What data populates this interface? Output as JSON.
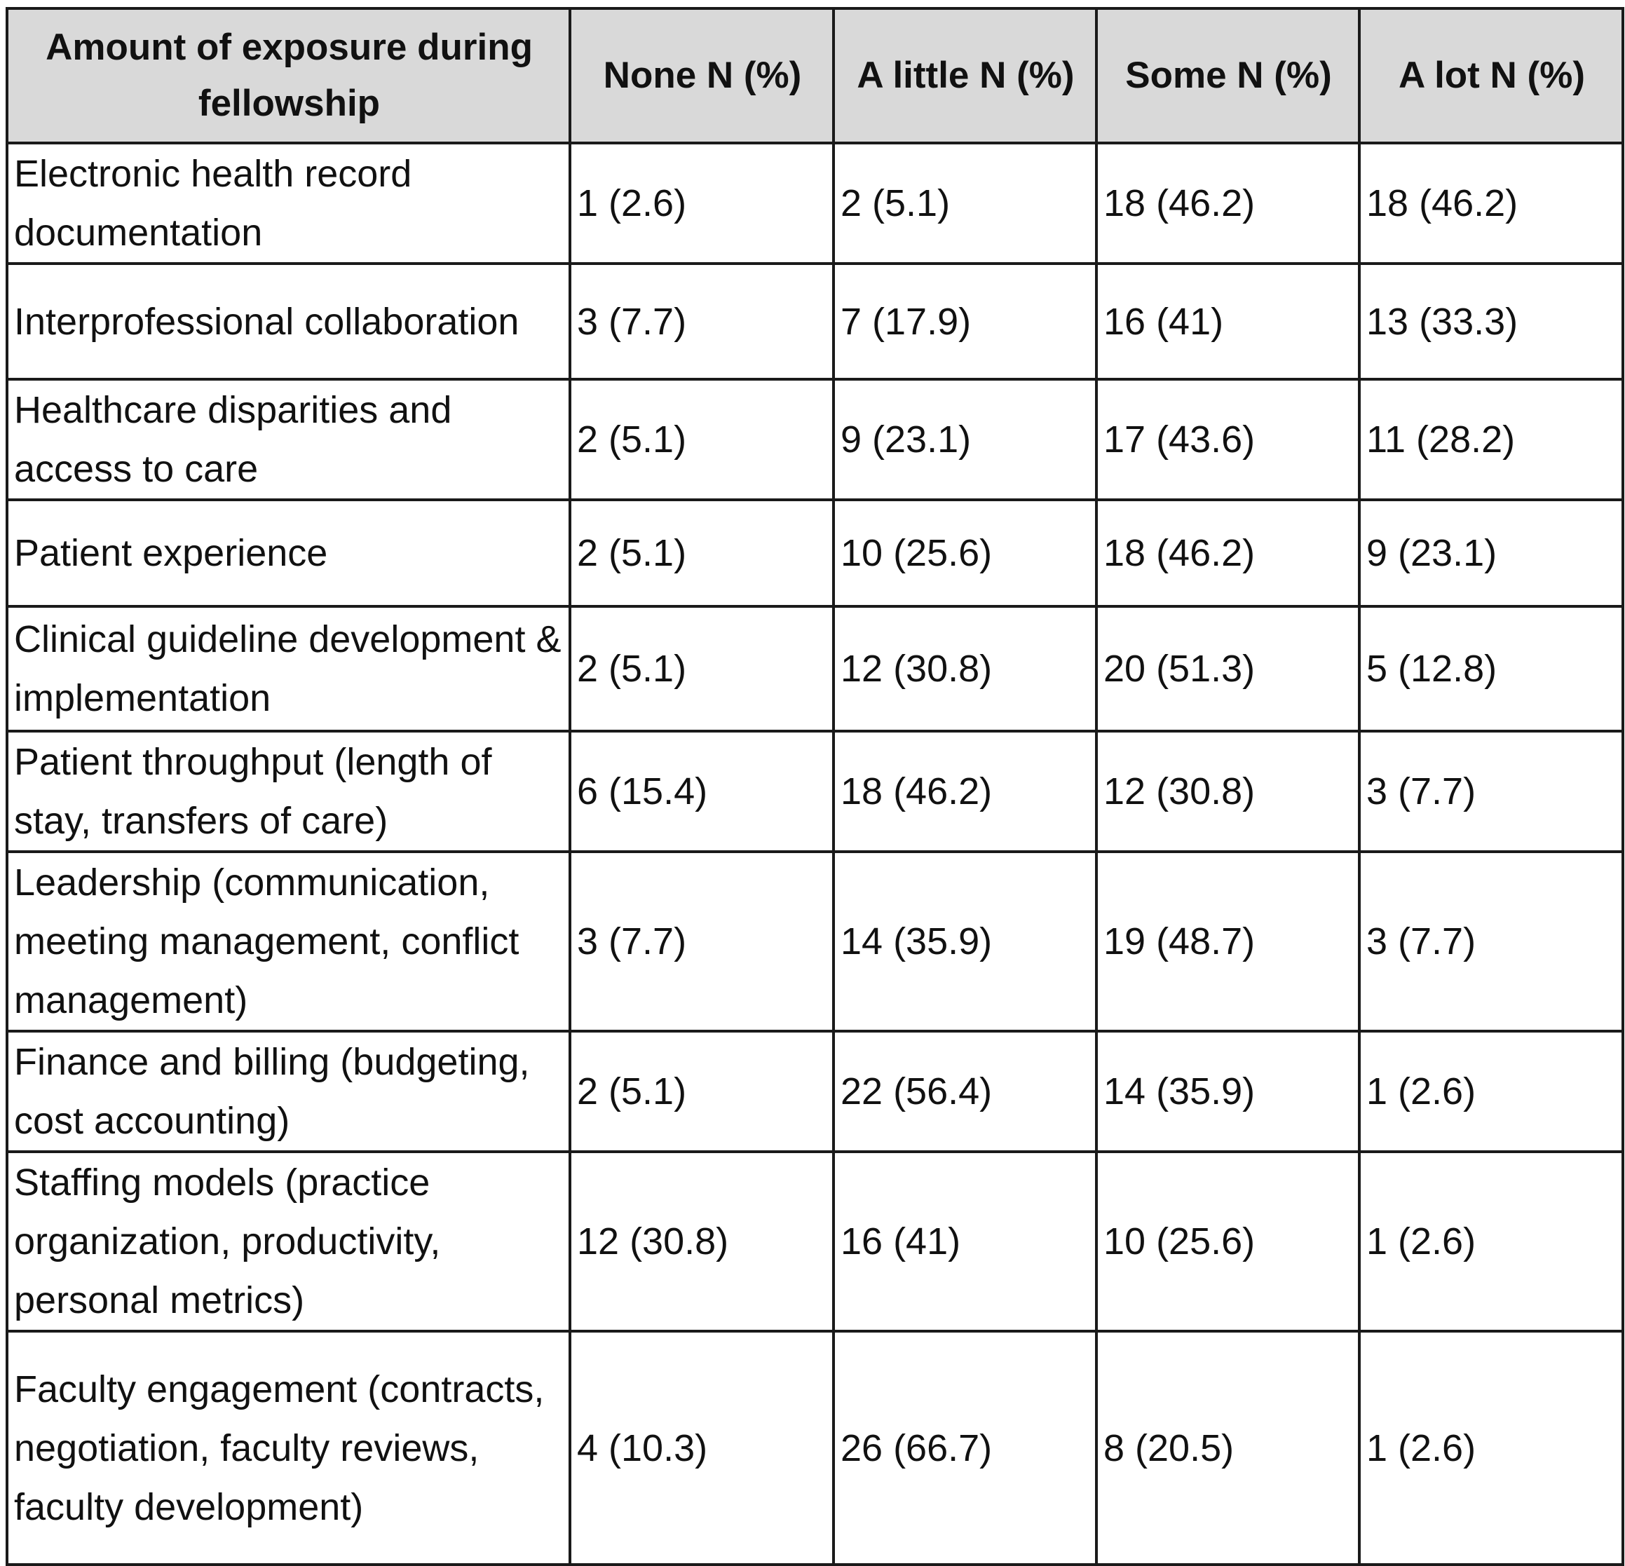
{
  "table": {
    "headers": [
      "Amount of exposure during fellowship",
      "None N (%)",
      "A little N (%)",
      "Some N (%)",
      "A lot N (%)"
    ],
    "rows": [
      {
        "topic": "Electronic health record documentation",
        "none": "1 (2.6)",
        "a_little": "2 (5.1)",
        "some": "18 (46.2)",
        "a_lot": "18 (46.2)"
      },
      {
        "topic": "Interprofessional collaboration",
        "none": "3 (7.7)",
        "a_little": "7 (17.9)",
        "some": "16 (41)",
        "a_lot": "13 (33.3)"
      },
      {
        "topic": "Healthcare disparities and access to care",
        "none": "2 (5.1)",
        "a_little": "9 (23.1)",
        "some": "17 (43.6)",
        "a_lot": "11 (28.2)"
      },
      {
        "topic": "Patient experience",
        "none": "2 (5.1)",
        "a_little": "10 (25.6)",
        "some": "18 (46.2)",
        "a_lot": "9 (23.1)"
      },
      {
        "topic": "Clinical guideline development & implementation",
        "none": "2 (5.1)",
        "a_little": "12 (30.8)",
        "some": "20 (51.3)",
        "a_lot": "5 (12.8)"
      },
      {
        "topic": "Patient throughput (length of stay, transfers of care)",
        "none": "6 (15.4)",
        "a_little": "18 (46.2)",
        "some": "12 (30.8)",
        "a_lot": "3 (7.7)"
      },
      {
        "topic": "Leadership (communication, meeting management, conflict management)",
        "none": "3 (7.7)",
        "a_little": "14 (35.9)",
        "some": "19 (48.7)",
        "a_lot": "3 (7.7)"
      },
      {
        "topic": "Finance and billing (budgeting, cost accounting)",
        "none": "2 (5.1)",
        "a_little": "22 (56.4)",
        "some": "14 (35.9)",
        "a_lot": "1 (2.6)"
      },
      {
        "topic": "Staffing models (practice organization, productivity, personal metrics)",
        "none": "12 (30.8)",
        "a_little": "16 (41)",
        "some": "10 (25.6)",
        "a_lot": "1 (2.6)"
      },
      {
        "topic": "Faculty engagement (contracts, negotiation, faculty reviews, faculty development)",
        "none": "4 (10.3)",
        "a_little": "26 (66.7)",
        "some": "8 (20.5)",
        "a_lot": "1 (2.6)"
      }
    ]
  }
}
